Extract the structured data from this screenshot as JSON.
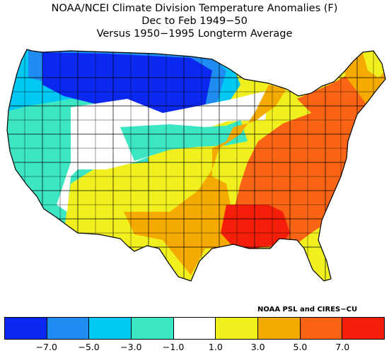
{
  "title": {
    "line1": "NOAA/NCEI Climate Division Temperature Anomalies (F)",
    "line2": "Dec to Feb 1949−50",
    "line3": "Versus 1950−1995 Longterm Average"
  },
  "credit": "NOAA PSL and CIRES−CU",
  "legend": {
    "colors": [
      "#0a28f0",
      "#1e8cf0",
      "#00c8f5",
      "#3ce6c3",
      "#ffffff",
      "#f0f01e",
      "#f5aa00",
      "#fa6414",
      "#f51e0a"
    ],
    "labels": [
      "−7.0",
      "−5.0",
      "−3.0",
      "−1.0",
      "1.0",
      "3.0",
      "5.0",
      "7.0"
    ]
  }
}
